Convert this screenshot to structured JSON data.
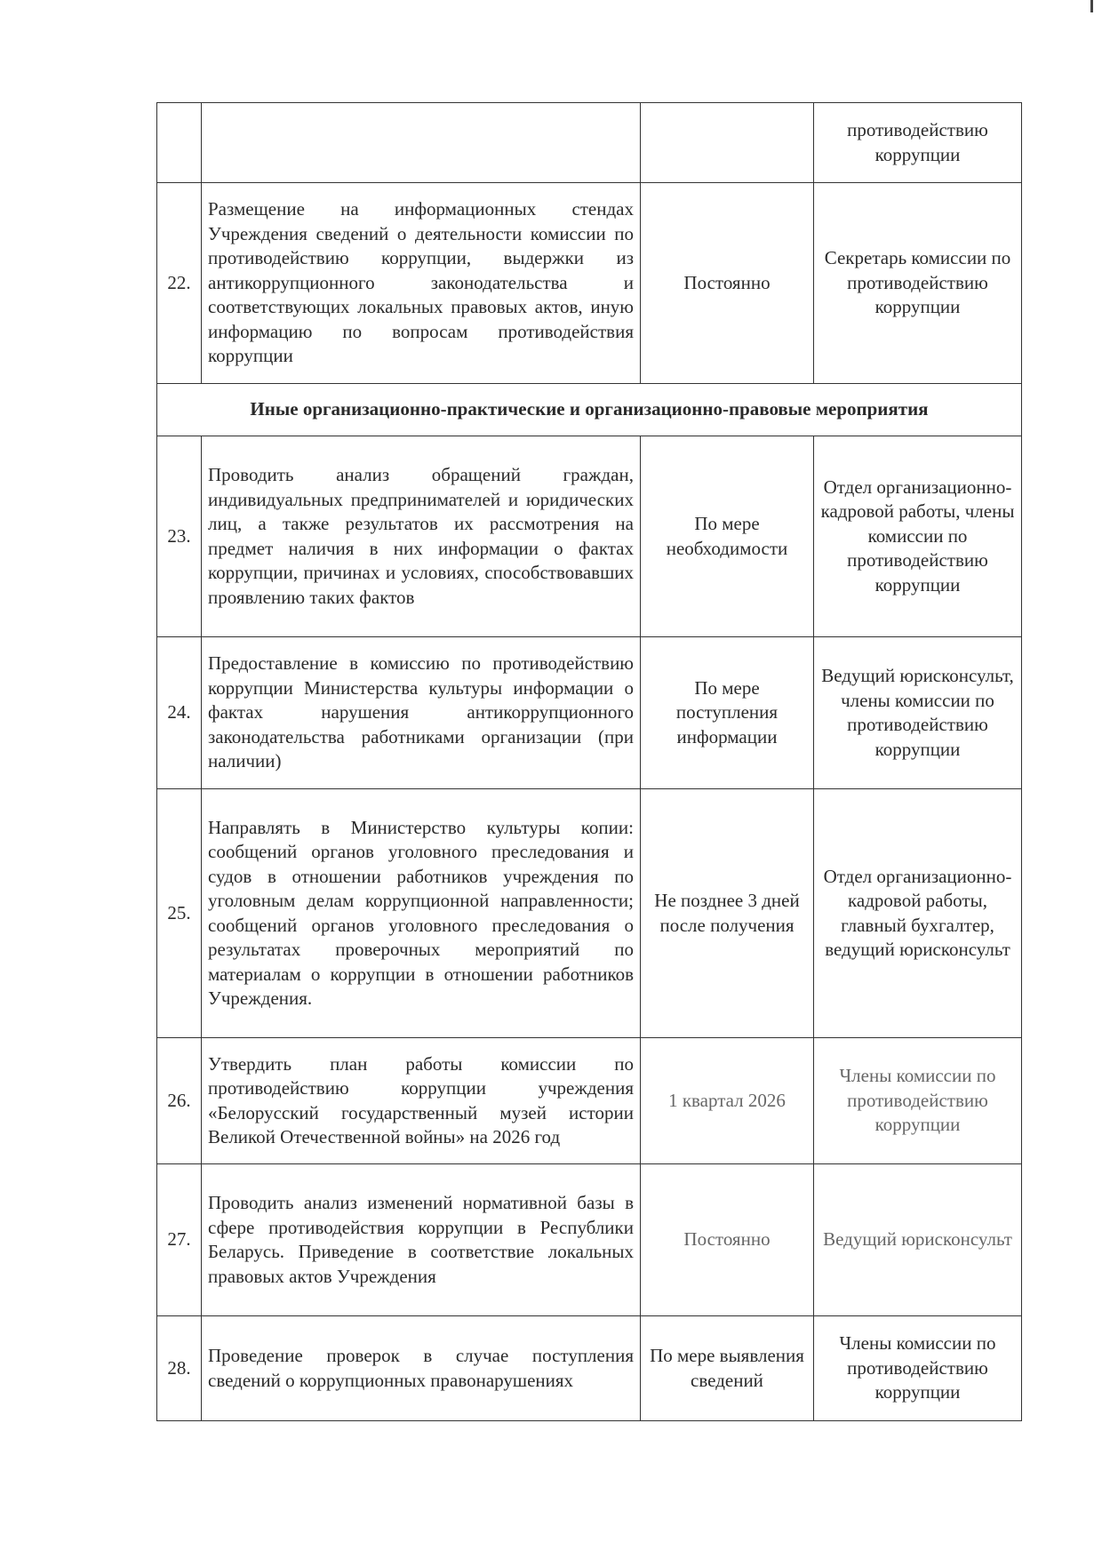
{
  "rows": [
    {
      "num": "",
      "desc": "",
      "term": "",
      "resp": "противодействию коррупции"
    },
    {
      "num": "22.",
      "desc": "Размещение на информационных стендах Учреждения сведений о деятельности комиссии по противодействию коррупции, выдержки из антикоррупционного законодательства и соответствующих локальных правовых актов, иную информацию по вопросам противодействия коррупции",
      "term": "Постоянно",
      "resp": "Секретарь комиссии по противодействию коррупции"
    },
    {
      "section": "Иные организационно-практические и организационно-правовые мероприятия"
    },
    {
      "num": "23.",
      "desc": "Проводить анализ обращений граждан, индивидуальных предпринимателей и юридических лиц, а также результатов их рассмотрения на предмет наличия в них информации о фактах коррупции, причинах и условиях, способствовавших проявлению таких фактов",
      "term": "По мере необходимости",
      "resp": "Отдел организационно-кадровой работы, члены комиссии по противодействию коррупции"
    },
    {
      "num": "24.",
      "desc": "Предоставление в комиссию по противодействию коррупции Министерства культуры информации о фактах нарушения антикоррупционного законодательства работниками организации (при наличии)",
      "term": "По мере поступления информации",
      "resp": "Ведущий юрисконсульт, члены комиссии по противодействию коррупции"
    },
    {
      "num": "25.",
      "desc": "Направлять в Министерство культуры копии: сообщений органов уголовного преследования и судов в отношении работников учреждения по уголовным делам коррупционной направленности; сообщений органов уголовного преследования о результатах проверочных мероприятий по материалам о коррупции в отношении работников Учреждения.",
      "term": "Не позднее 3 дней после получения",
      "resp": "Отдел организационно-кадровой работы, главный бухгалтер, ведущий юрисконсульт"
    },
    {
      "num": "26.",
      "desc": "Утвердить план работы комиссии по противодействию коррупции учреждения «Белорусский государственный музей истории Великой Отечественной войны» на 2026 год",
      "term": "1 квартал 2026",
      "resp": "Члены комиссии по противодействию коррупции"
    },
    {
      "num": "27.",
      "desc": "Проводить анализ изменений нормативной базы в сфере противодействия коррупции в Республики Беларусь. Приведение в соответствие локальных правовых актов Учреждения",
      "term": "Постоянно",
      "resp": "Ведущий юрисконсульт"
    },
    {
      "num": "28.",
      "desc": "Проведение проверок в случае поступления сведений о коррупционных правонарушениях",
      "term": "По мере выявления сведений",
      "resp": "Члены комиссии по противодействию коррупции"
    }
  ]
}
